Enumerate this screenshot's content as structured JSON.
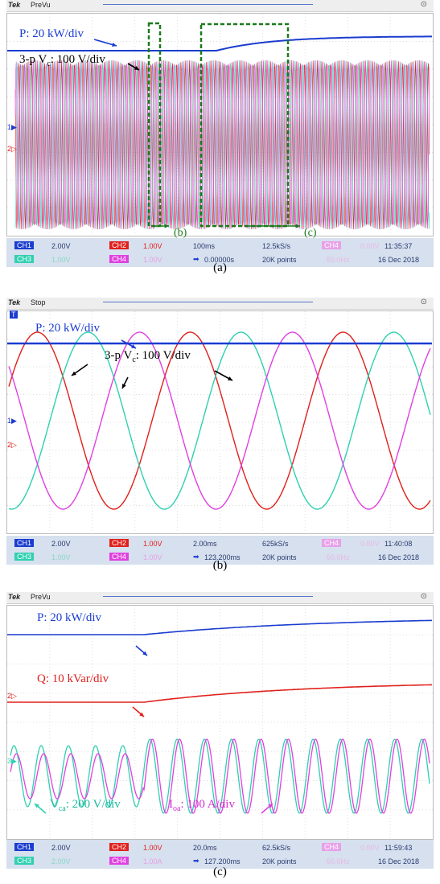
{
  "panels": [
    {
      "mode": "PreVu",
      "p_label": "P: 20 kW/div",
      "v_label": "3-p V",
      "v_sub": "c",
      "v_suffix": ": 100 V/div",
      "box_b": "(b)",
      "box_c": "(c)",
      "ch1_scale": "2.00V",
      "ch2_scale": "1.00V",
      "ch3_scale": "1.00V",
      "ch4_scale": "1.00V",
      "timebase": "100ms",
      "position": "0.00000s",
      "sample_rate": "12.5kS/s",
      "record": "20K points",
      "ch4_trigger": "0.00V",
      "freq": "50.0Hz",
      "time": "11:35:37",
      "date": "16 Dec 2018",
      "caption": "(a)"
    },
    {
      "mode": "Stop",
      "p_label": "P: 20 kW/div",
      "v_label": "3-p V",
      "v_sub": "c",
      "v_suffix": ": 100 V/div",
      "ch1_scale": "2.00V",
      "ch2_scale": "1.00V",
      "ch3_scale": "1.00V",
      "ch4_scale": "1.00V",
      "timebase": "2.00ms",
      "position": "123.200ms",
      "sample_rate": "625kS/s",
      "record": "20K points",
      "ch4_trigger": "0.00V",
      "freq": "50.0Hz",
      "time": "11:40:08",
      "date": "16 Dec 2018",
      "caption": "(b)"
    },
    {
      "mode": "PreVu",
      "p_label": "P: 20 kW/div",
      "q_label": "Q: 10 kVar/div",
      "v_label": "V",
      "v_sub": "ca",
      "v_suffix": ": 200 V/div",
      "i_label": "I",
      "i_sub": "oa",
      "i_suffix": ": 100 A/div",
      "ch1_scale": "2.00V",
      "ch2_scale": "1.00V",
      "ch3_scale": "2.00V",
      "ch4_scale": "1.00A",
      "timebase": "20.0ms",
      "position": "127.200ms",
      "sample_rate": "62.5kS/s",
      "record": "20K points",
      "ch4_trigger": "0.00V",
      "freq": "50.0Hz",
      "time": "11:59:43",
      "date": "16 Dec 2018",
      "caption": "(c)"
    }
  ],
  "channels": {
    "ch1": "CH1",
    "ch2": "CH2",
    "ch3": "CH3",
    "ch4": "CH4"
  },
  "brand": "Tek",
  "colors": {
    "p": "#1a3ccf",
    "red": "#e0201c",
    "teal": "#2fd0b0",
    "magenta": "#e040e0",
    "box": "#1a7a1a"
  }
}
